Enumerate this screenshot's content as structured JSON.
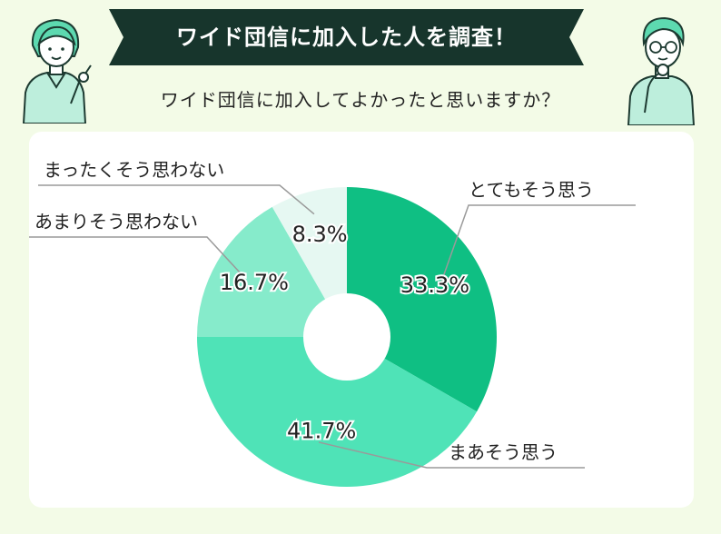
{
  "header": {
    "title": "ワイド団信に加入した人を調査！",
    "subtitle": "ワイド団信に加入してよかったと思いますか？"
  },
  "colors": {
    "background": "#f3fbe7",
    "banner": "#17352c",
    "card": "#ffffff",
    "leader_line": "#9a9a9a"
  },
  "chart_data": {
    "type": "pie",
    "donut": true,
    "categories": [
      "とてもそう思う",
      "まあそう思う",
      "あまりそう思わない",
      "まったくそう思わない"
    ],
    "values": [
      33.3,
      41.7,
      16.7,
      8.3
    ],
    "value_labels": [
      "33.3%",
      "41.7%",
      "16.7%",
      "8.3%"
    ],
    "colors": [
      "#0fbf83",
      "#4fe3b7",
      "#86ebcb",
      "#e6f8f2"
    ]
  }
}
